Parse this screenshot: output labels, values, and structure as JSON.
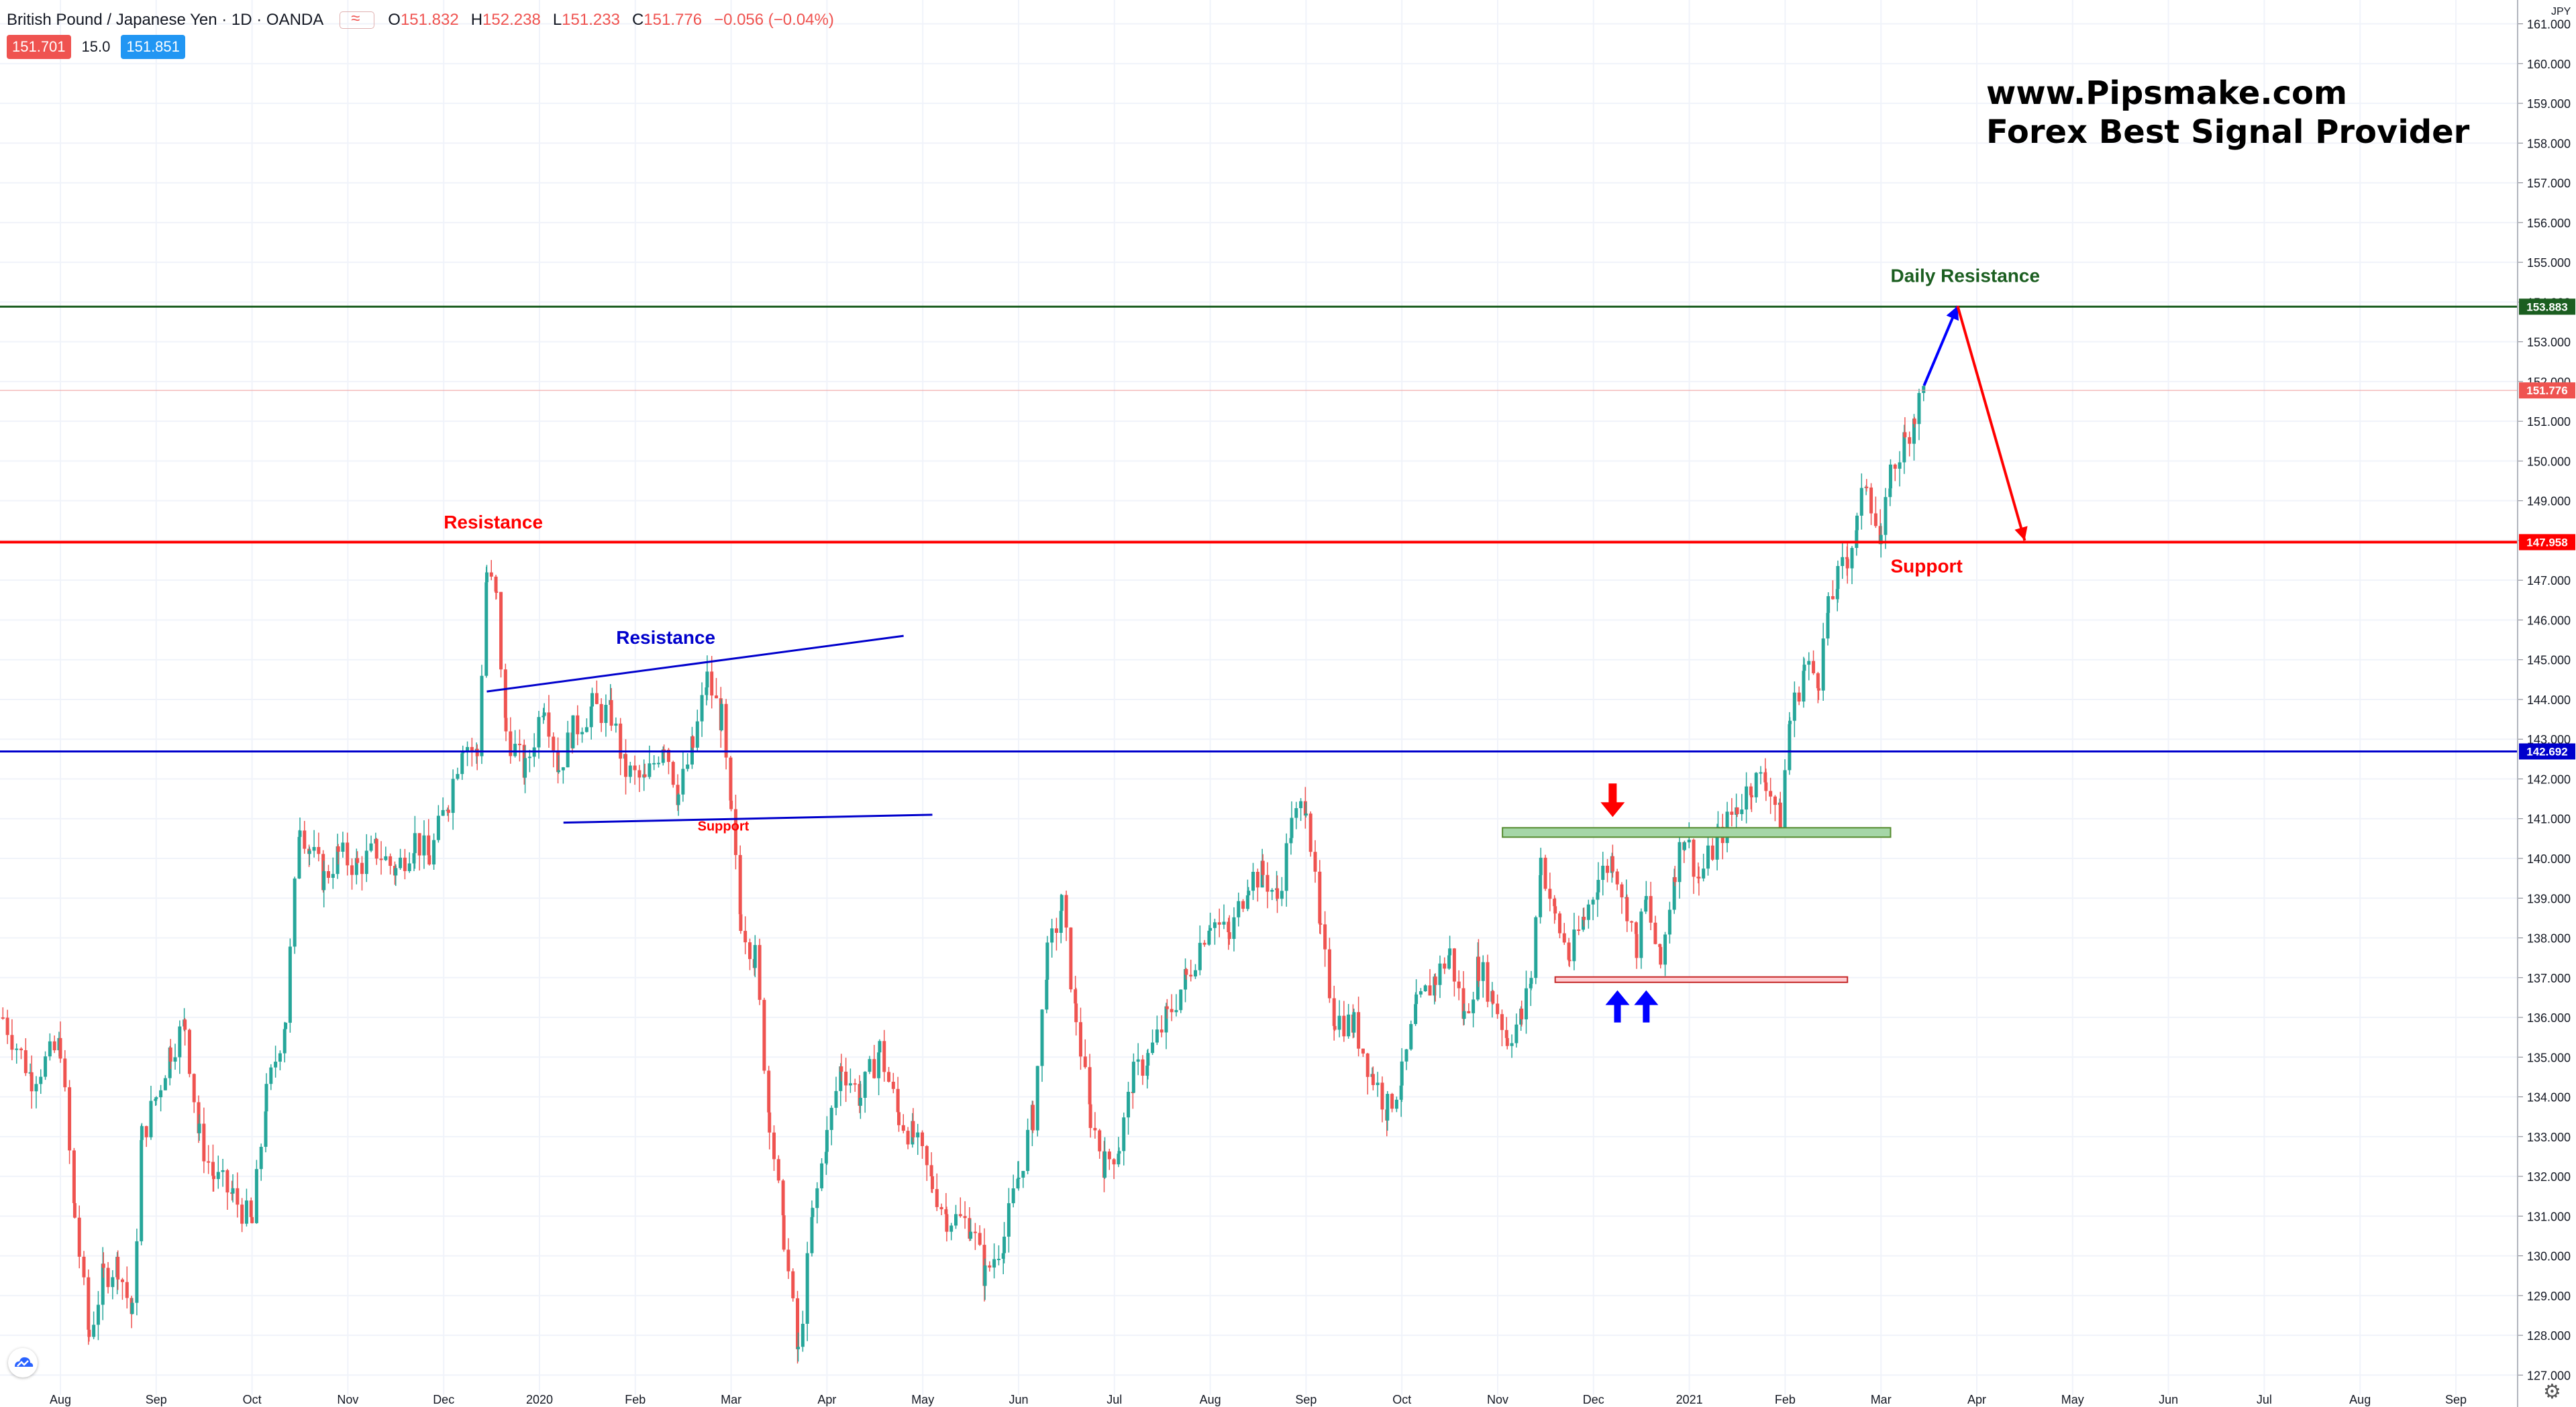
{
  "header": {
    "symbol": "British Pound / Japanese Yen · 1D · OANDA",
    "o_label": "O",
    "o_value": "151.832",
    "h_label": "H",
    "h_value": "152.238",
    "l_label": "L",
    "l_value": "151.233",
    "c_label": "C",
    "c_value": "151.776",
    "change": "−0.056 (−0.04%)"
  },
  "trade": {
    "sell_price": "151.701",
    "spread": "15.0",
    "buy_price": "151.851"
  },
  "watermark": {
    "line1": "www.Pipsmake.com",
    "line2": "Forex Best Signal Provider"
  },
  "icons": {
    "logo": "tradingview-cloud-icon",
    "settings": "gear-icon"
  },
  "colors": {
    "up": "#26a69a",
    "down": "#ef5350",
    "grid": "#f0f3fa",
    "red_line": "#ff0000",
    "blue_line": "#0000cc",
    "green_line": "#1b5e20",
    "zone_fill": "#a5d6a7",
    "zone_stroke": "#558b2f"
  },
  "chart_data": {
    "type": "candlestick",
    "currency": "JPY",
    "ylim": [
      126.5,
      161.6
    ],
    "y_ticks": [
      "127.000",
      "128.000",
      "129.000",
      "130.000",
      "131.000",
      "132.000",
      "133.000",
      "134.000",
      "135.000",
      "136.000",
      "137.000",
      "138.000",
      "139.000",
      "140.000",
      "141.000",
      "142.000",
      "143.000",
      "144.000",
      "145.000",
      "146.000",
      "147.000",
      "148.000",
      "149.000",
      "150.000",
      "151.000",
      "152.000",
      "153.000",
      "154.000",
      "155.000",
      "156.000",
      "157.000",
      "158.000",
      "159.000",
      "160.000",
      "161.000"
    ],
    "x_ticks": [
      {
        "label": "Aug",
        "month": 0
      },
      {
        "label": "Sep",
        "month": 1
      },
      {
        "label": "Oct",
        "month": 2
      },
      {
        "label": "Nov",
        "month": 3
      },
      {
        "label": "Dec",
        "month": 4
      },
      {
        "label": "2020",
        "month": 5
      },
      {
        "label": "Feb",
        "month": 6
      },
      {
        "label": "Mar",
        "month": 7
      },
      {
        "label": "Apr",
        "month": 8
      },
      {
        "label": "May",
        "month": 9
      },
      {
        "label": "Jun",
        "month": 10
      },
      {
        "label": "Jul",
        "month": 11
      },
      {
        "label": "Aug",
        "month": 12
      },
      {
        "label": "Sep",
        "month": 13
      },
      {
        "label": "Oct",
        "month": 14
      },
      {
        "label": "Nov",
        "month": 15
      },
      {
        "label": "Dec",
        "month": 16
      },
      {
        "label": "2021",
        "month": 17
      },
      {
        "label": "Feb",
        "month": 18
      },
      {
        "label": "Mar",
        "month": 19
      },
      {
        "label": "Apr",
        "month": 20
      },
      {
        "label": "May",
        "month": 21
      },
      {
        "label": "Jun",
        "month": 22
      },
      {
        "label": "Jul",
        "month": 23
      },
      {
        "label": "Aug",
        "month": 24
      },
      {
        "label": "Sep",
        "month": 25
      }
    ],
    "price_path": [
      [
        -0.6,
        136.0
      ],
      [
        -0.3,
        134.5
      ],
      [
        0.0,
        135.3
      ],
      [
        0.15,
        131.0
      ],
      [
        0.3,
        128.0
      ],
      [
        0.45,
        129.5
      ],
      [
        0.6,
        129.8
      ],
      [
        0.75,
        128.5
      ],
      [
        0.85,
        133.0
      ],
      [
        1.0,
        134.0
      ],
      [
        1.15,
        135.2
      ],
      [
        1.3,
        135.8
      ],
      [
        1.45,
        133.0
      ],
      [
        1.6,
        132.0
      ],
      [
        1.8,
        131.5
      ],
      [
        2.0,
        130.8
      ],
      [
        2.15,
        134.0
      ],
      [
        2.35,
        136.0
      ],
      [
        2.5,
        141.0
      ],
      [
        2.6,
        140.2
      ],
      [
        2.75,
        139.5
      ],
      [
        2.9,
        140.1
      ],
      [
        3.1,
        139.8
      ],
      [
        3.3,
        140.2
      ],
      [
        3.5,
        139.7
      ],
      [
        3.7,
        140.5
      ],
      [
        3.85,
        140.0
      ],
      [
        4.05,
        141.5
      ],
      [
        4.2,
        143.0
      ],
      [
        4.35,
        142.6
      ],
      [
        4.45,
        147.2
      ],
      [
        4.55,
        146.5
      ],
      [
        4.65,
        143.2
      ],
      [
        4.85,
        142.2
      ],
      [
        5.05,
        144.0
      ],
      [
        5.2,
        142.3
      ],
      [
        5.35,
        143.2
      ],
      [
        5.55,
        143.8
      ],
      [
        5.75,
        143.6
      ],
      [
        5.9,
        142.2
      ],
      [
        6.1,
        141.9
      ],
      [
        6.3,
        143.0
      ],
      [
        6.45,
        141.6
      ],
      [
        6.6,
        142.8
      ],
      [
        6.75,
        144.5
      ],
      [
        6.9,
        143.5
      ],
      [
        7.0,
        141.0
      ],
      [
        7.1,
        138.5
      ],
      [
        7.25,
        137.5
      ],
      [
        7.4,
        133.5
      ],
      [
        7.55,
        130.5
      ],
      [
        7.7,
        127.5
      ],
      [
        7.85,
        131.0
      ],
      [
        8.0,
        133.0
      ],
      [
        8.15,
        134.8
      ],
      [
        8.35,
        134.0
      ],
      [
        8.55,
        135.2
      ],
      [
        8.75,
        133.5
      ],
      [
        8.9,
        133.0
      ],
      [
        9.1,
        131.8
      ],
      [
        9.25,
        131.0
      ],
      [
        9.5,
        130.8
      ],
      [
        9.65,
        129.5
      ],
      [
        9.85,
        130.5
      ],
      [
        10.0,
        132.0
      ],
      [
        10.15,
        133.5
      ],
      [
        10.3,
        137.5
      ],
      [
        10.45,
        138.8
      ],
      [
        10.6,
        136.0
      ],
      [
        10.75,
        133.5
      ],
      [
        10.9,
        132.3
      ],
      [
        11.05,
        132.8
      ],
      [
        11.2,
        134.5
      ],
      [
        11.35,
        135.0
      ],
      [
        11.55,
        136.0
      ],
      [
        11.75,
        137.0
      ],
      [
        12.0,
        138.5
      ],
      [
        12.2,
        138.0
      ],
      [
        12.4,
        139.5
      ],
      [
        12.55,
        139.6
      ],
      [
        12.7,
        139.0
      ],
      [
        12.85,
        140.8
      ],
      [
        13.0,
        141.5
      ],
      [
        13.15,
        138.0
      ],
      [
        13.3,
        136.0
      ],
      [
        13.5,
        135.8
      ],
      [
        13.7,
        134.5
      ],
      [
        13.85,
        133.7
      ],
      [
        14.0,
        134.5
      ],
      [
        14.15,
        136.2
      ],
      [
        14.35,
        137.0
      ],
      [
        14.5,
        137.6
      ],
      [
        14.65,
        136.0
      ],
      [
        14.8,
        137.3
      ],
      [
        14.95,
        136.5
      ],
      [
        15.1,
        135.5
      ],
      [
        15.25,
        136.0
      ],
      [
        15.35,
        137.0
      ],
      [
        15.45,
        140.0
      ],
      [
        15.6,
        138.5
      ],
      [
        15.75,
        137.5
      ],
      [
        15.9,
        138.5
      ],
      [
        16.05,
        139.5
      ],
      [
        16.2,
        140.0
      ],
      [
        16.35,
        138.8
      ],
      [
        16.45,
        137.8
      ],
      [
        16.55,
        138.9
      ],
      [
        16.7,
        137.3
      ],
      [
        16.85,
        139.8
      ],
      [
        16.95,
        140.6
      ],
      [
        17.1,
        139.5
      ],
      [
        17.3,
        140.5
      ],
      [
        17.5,
        141.3
      ],
      [
        17.65,
        141.9
      ],
      [
        17.8,
        142.0
      ],
      [
        17.95,
        141.0
      ],
      [
        18.05,
        143.5
      ],
      [
        18.2,
        144.8
      ],
      [
        18.35,
        144.6
      ],
      [
        18.45,
        146.2
      ],
      [
        18.55,
        147.0
      ],
      [
        18.65,
        147.6
      ],
      [
        18.75,
        148.4
      ],
      [
        18.85,
        149.6
      ],
      [
        19.0,
        147.8
      ],
      [
        19.1,
        149.7
      ],
      [
        19.25,
        150.5
      ],
      [
        19.35,
        151.2
      ],
      [
        19.45,
        151.8
      ]
    ],
    "levels": [
      {
        "price": 153.883,
        "label": "153.883",
        "color": "#1b5e20"
      },
      {
        "price": 151.776,
        "label": "151.776",
        "color": "#ef5350"
      },
      {
        "price": 147.958,
        "label": "147.958",
        "color": "#ff0000"
      },
      {
        "price": 142.692,
        "label": "142.692",
        "color": "#0000cc"
      }
    ],
    "annotations": [
      {
        "text": "Daily Resistance",
        "color": "#1b5e20"
      },
      {
        "text": "Resistance",
        "color": "#ff0000"
      },
      {
        "text": "Resistance",
        "color": "#0000cc"
      },
      {
        "text": "Support",
        "color": "#ff0000"
      },
      {
        "text": "Support",
        "color": "#ff0000"
      }
    ],
    "wedge": {
      "upper": [
        [
          4.45,
          144.2
        ],
        [
          8.8,
          145.6
        ]
      ],
      "lower": [
        [
          5.25,
          140.9
        ],
        [
          9.1,
          141.1
        ]
      ]
    },
    "zone_green": {
      "x0": 15.05,
      "x1": 19.1,
      "y0": 140.57,
      "y1": 140.67
    },
    "zone_red": {
      "x0": 15.6,
      "x1": 18.65,
      "y0": 136.85,
      "y1": 136.95
    },
    "projection": {
      "up": [
        [
          19.45,
          151.9
        ],
        [
          19.8,
          153.9
        ]
      ],
      "down": [
        [
          19.8,
          153.9
        ],
        [
          20.5,
          148.0
        ]
      ]
    }
  }
}
